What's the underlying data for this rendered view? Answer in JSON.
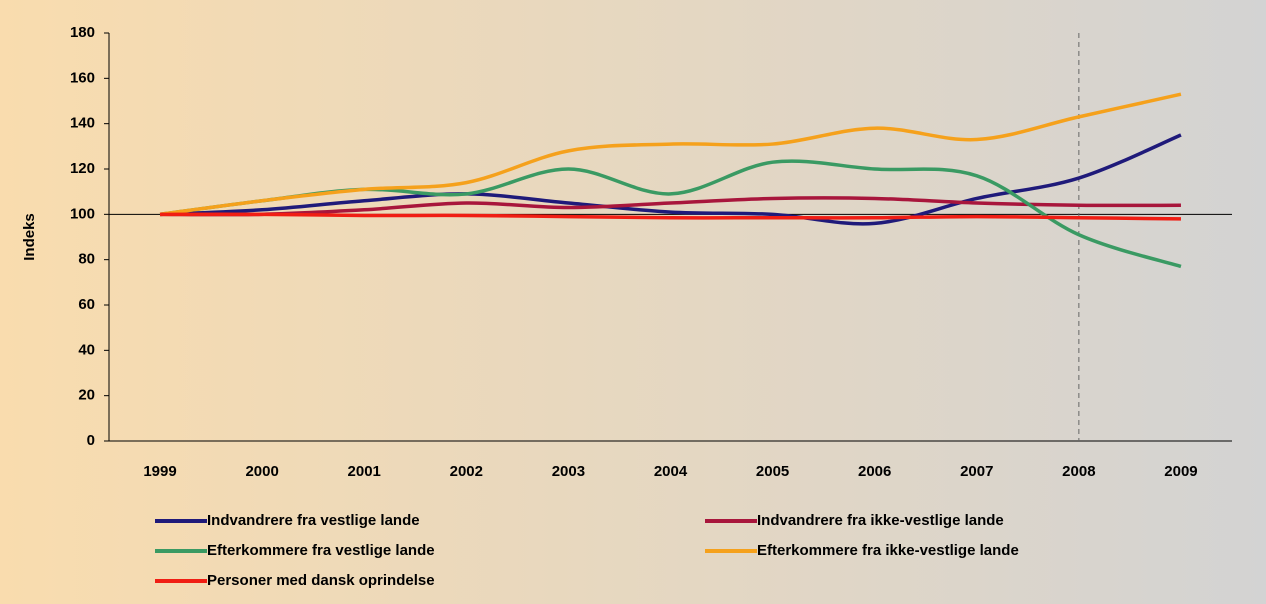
{
  "chart_data": {
    "type": "line",
    "y_label": "Indeks",
    "categories": [
      "1999",
      "2000",
      "2001",
      "2002",
      "2003",
      "2004",
      "2005",
      "2006",
      "2007",
      "2008",
      "2009"
    ],
    "series": [
      {
        "name": "Indvandrere fra vestlige lande",
        "color": "#1f1a7a",
        "values": [
          100,
          102,
          106,
          109,
          105,
          101,
          100,
          96,
          107,
          116,
          135
        ]
      },
      {
        "name": "Indvandrere fra ikke-vestlige lande",
        "color": "#a8163c",
        "values": [
          100,
          100,
          102,
          105,
          103,
          105,
          107,
          107,
          105,
          104,
          104
        ]
      },
      {
        "name": "Efterkommere fra vestlige lande",
        "color": "#3a9a63",
        "values": [
          100,
          106,
          111,
          109,
          120,
          109,
          123,
          120,
          117,
          91,
          77
        ]
      },
      {
        "name": "Efterkommere fra ikke-vestlige lande",
        "color": "#f5a11c",
        "values": [
          100,
          106,
          111,
          114,
          128,
          131,
          131,
          138,
          133,
          143,
          153
        ]
      },
      {
        "name": "Personer med dansk oprindelse",
        "color": "#f01e14",
        "values": [
          100,
          100,
          99.5,
          99.5,
          99,
          98.5,
          98.5,
          98.5,
          99,
          98.5,
          98
        ]
      }
    ],
    "ylim": [
      0,
      180
    ],
    "yticks": [
      0,
      20,
      40,
      60,
      80,
      100,
      120,
      140,
      160,
      180
    ],
    "reference_line": 100,
    "smooth": true
  }
}
